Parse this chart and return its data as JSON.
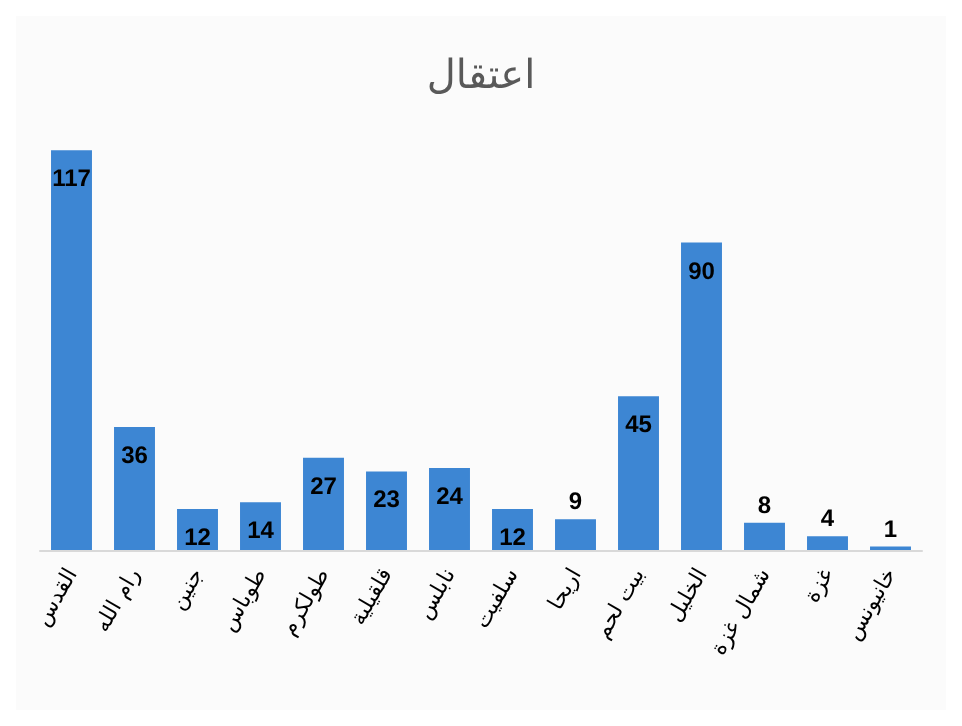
{
  "chart_data": {
    "type": "bar",
    "title": "اعتقال",
    "categories": [
      "القدس",
      "رام الله",
      "جنين",
      "طوباس",
      "طولكرم",
      "قلقيلية",
      "نابلس",
      "سلفيت",
      "اريحا",
      "بيت لحم",
      "الخليل",
      "شمال غزة",
      "غزة",
      "خانيونس"
    ],
    "values": [
      117,
      36,
      12,
      14,
      27,
      23,
      24,
      12,
      9,
      45,
      90,
      8,
      4,
      1
    ],
    "color": "#3d86d3",
    "data_labels": true,
    "grid": false
  }
}
